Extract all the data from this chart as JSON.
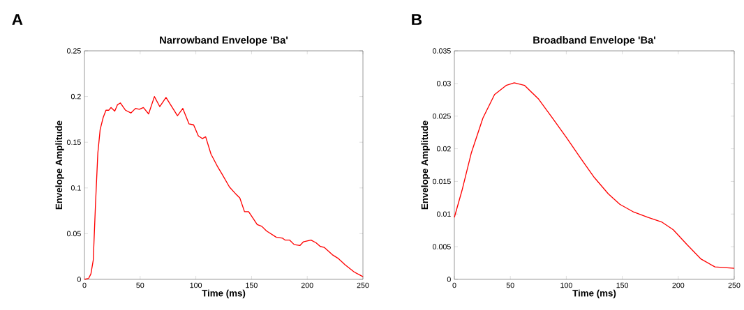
{
  "chart_data": [
    {
      "type": "line",
      "title": "Narrowband Envelope 'Ba'",
      "xlabel": "Time (ms)",
      "ylabel": "Envelope Amplitude",
      "annotations": [
        "A"
      ],
      "color": "#ff0000",
      "line_style": "solid",
      "marker": "none",
      "x": [
        0,
        3.7,
        5.8,
        7.9,
        9.9,
        12,
        14.1,
        16.8,
        19.3,
        21.8,
        23.8,
        27.2,
        29.6,
        32.3,
        36.9,
        41.7,
        45.8,
        49.3,
        52.9,
        57.6,
        62.8,
        67.6,
        73.2,
        78.4,
        83.5,
        88.3,
        93.9,
        98,
        102.2,
        105.9,
        108.8,
        113.6,
        119.2,
        123.6,
        130.2,
        135.4,
        139.5,
        143.7,
        147.4,
        155.1,
        159.2,
        163.4,
        172.3,
        177.9,
        180,
        184.1,
        188.3,
        193.4,
        196.5,
        203.4,
        207.9,
        211.7,
        215.2,
        222.5,
        227.7,
        233.9,
        242.2,
        250
      ],
      "values": [
        0,
        0.001,
        0.006,
        0.021,
        0.082,
        0.138,
        0.164,
        0.177,
        0.185,
        0.185,
        0.188,
        0.184,
        0.191,
        0.193,
        0.185,
        0.182,
        0.187,
        0.186,
        0.188,
        0.181,
        0.2,
        0.189,
        0.199,
        0.189,
        0.179,
        0.187,
        0.17,
        0.169,
        0.157,
        0.154,
        0.156,
        0.137,
        0.124,
        0.115,
        0.101,
        0.094,
        0.089,
        0.074,
        0.074,
        0.06,
        0.058,
        0.053,
        0.046,
        0.045,
        0.043,
        0.043,
        0.038,
        0.037,
        0.041,
        0.043,
        0.04,
        0.036,
        0.035,
        0.027,
        0.023,
        0.016,
        0.008,
        0.003
      ],
      "xlim": [
        0,
        250
      ],
      "xticks": [
        0,
        50,
        100,
        150,
        200,
        250
      ],
      "ylim": [
        0,
        0.25
      ],
      "yticks": [
        0,
        0.05,
        0.1,
        0.15,
        0.2,
        0.25
      ]
    },
    {
      "type": "line",
      "title": "Broadband Envelope 'Ba'",
      "xlabel": "Time (ms)",
      "ylabel": "Envelope Amplitude",
      "annotations": [
        "B"
      ],
      "color": "#ff0000",
      "line_style": "solid",
      "marker": "none",
      "x": [
        0,
        6.8,
        15.2,
        25.5,
        35.9,
        46.2,
        53.5,
        62.8,
        75.3,
        87.7,
        100.2,
        112.6,
        125,
        137.5,
        147.8,
        160.3,
        172.7,
        185.1,
        195.5,
        207.9,
        220.4,
        232.8,
        250
      ],
      "values": [
        0.0095,
        0.0136,
        0.0194,
        0.0247,
        0.0283,
        0.0297,
        0.0301,
        0.0297,
        0.0276,
        0.0247,
        0.0217,
        0.0186,
        0.0156,
        0.0131,
        0.0115,
        0.0103,
        0.0095,
        0.0088,
        0.0076,
        0.0053,
        0.0031,
        0.0019,
        0.0017
      ],
      "xlim": [
        0,
        250
      ],
      "xticks": [
        0,
        50,
        100,
        150,
        200,
        250
      ],
      "ylim": [
        0,
        0.035
      ],
      "yticks": [
        0,
        0.005,
        0.01,
        0.015,
        0.02,
        0.025,
        0.03,
        0.035
      ]
    }
  ]
}
